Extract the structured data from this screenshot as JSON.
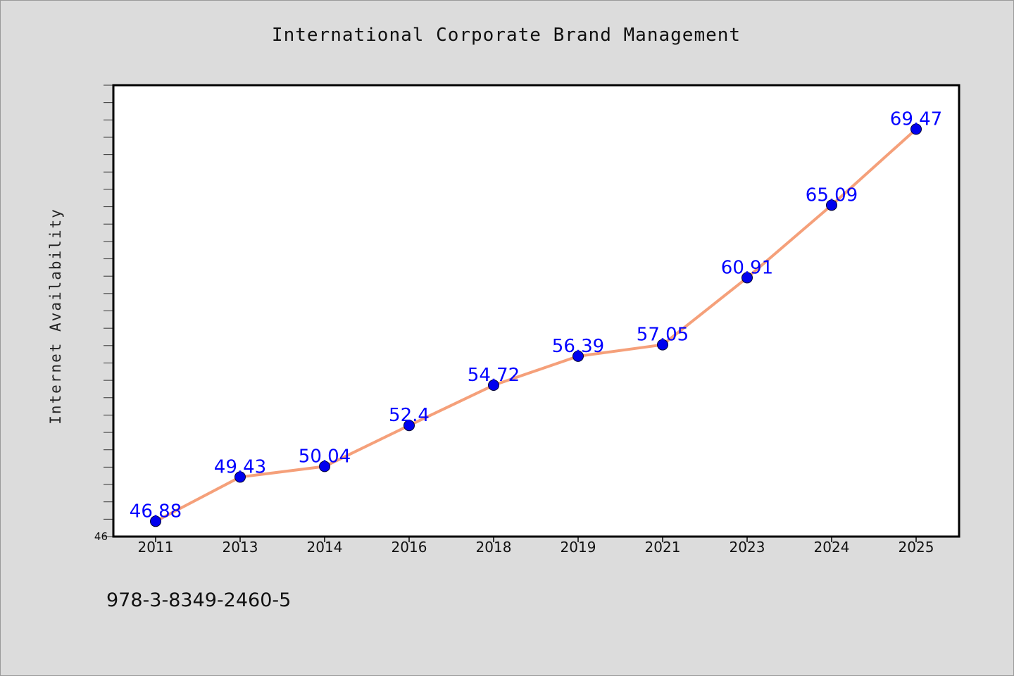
{
  "chart_data": {
    "type": "line",
    "title": "International Corporate Brand Management",
    "xlabel": "",
    "ylabel": "Internet Availability",
    "categories": [
      "2011",
      "2013",
      "2014",
      "2016",
      "2018",
      "2019",
      "2021",
      "2023",
      "2024",
      "2025"
    ],
    "series": [
      {
        "values": [
          46.88,
          49.43,
          50.04,
          52.4,
          54.72,
          56.39,
          57.05,
          60.91,
          65.09,
          69.47
        ],
        "data_labels": [
          "46.88",
          "49.43",
          "50.04",
          "52.4",
          "54.72",
          "56.39",
          "57.05",
          "60.91",
          "65.09",
          "69.47"
        ],
        "line_color": "#f5a07a",
        "marker_color": "#0000ee"
      }
    ],
    "ylim": [
      46,
      72
    ],
    "y_tick_labels": [
      "46"
    ],
    "y_minor_tick_step": 1,
    "grid": false,
    "legend": "none",
    "label_color": "#0000ff"
  },
  "footer": {
    "code": "978-3-8349-2460-5"
  }
}
